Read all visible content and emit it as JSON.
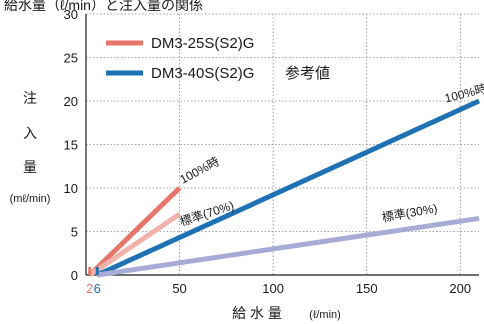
{
  "header_fragment": "給水量（ℓ/min）と注入量の関係",
  "chart_data": {
    "type": "line",
    "xlabel": "給 水 量",
    "xlabel_unit": "(ℓ/min)",
    "ylabel_chars": [
      "注",
      "入",
      "量"
    ],
    "ylabel_unit": "(mℓ/min)",
    "xlim": [
      0,
      210
    ],
    "ylim": [
      0,
      30
    ],
    "x_ticks": [
      0,
      50,
      100,
      150,
      200
    ],
    "y_ticks": [
      0,
      5,
      10,
      15,
      20,
      25,
      30
    ],
    "grid": true,
    "legend_position": "top-left",
    "start_markers": [
      {
        "label": "2",
        "value": 2,
        "color": "#e8756a"
      },
      {
        "label": "6",
        "value": 6,
        "color": "#1e72b4"
      }
    ],
    "series": [
      {
        "name": "DM3-25S(S2)G",
        "curve": "100%時",
        "x": [
          2,
          50
        ],
        "y": [
          0,
          10
        ],
        "color": "#e8756a",
        "legend": true
      },
      {
        "name": "DM3-25S(S2)G",
        "curve": "標準(70%)",
        "x": [
          2,
          50
        ],
        "y": [
          0,
          7
        ],
        "color": "#f2b1aa",
        "legend": false
      },
      {
        "name": "DM3-40S(S2)G 参考値",
        "curve": "100%時",
        "x": [
          6,
          210
        ],
        "y": [
          0,
          20
        ],
        "color": "#1e72b4",
        "legend": true
      },
      {
        "name": "DM3-40S(S2)G 参考値",
        "curve": "標準(30%)",
        "x": [
          6,
          210
        ],
        "y": [
          0,
          6.5
        ],
        "color": "#a8abd6",
        "legend": false
      }
    ],
    "legend": [
      {
        "label": "DM3-25S(S2)G",
        "color": "#e8756a"
      },
      {
        "label": "DM3-40S(S2)G",
        "extra": "参考値",
        "color": "#1e72b4"
      }
    ],
    "annotations": [
      {
        "text": "100%時",
        "x": 50,
        "y": 10
      },
      {
        "text": "標準(70%)",
        "x": 50,
        "y": 7
      },
      {
        "text": "100%時",
        "x": 195,
        "y": 18.9
      },
      {
        "text": "標準(30%)",
        "x": 165,
        "y": 5.2
      }
    ]
  }
}
